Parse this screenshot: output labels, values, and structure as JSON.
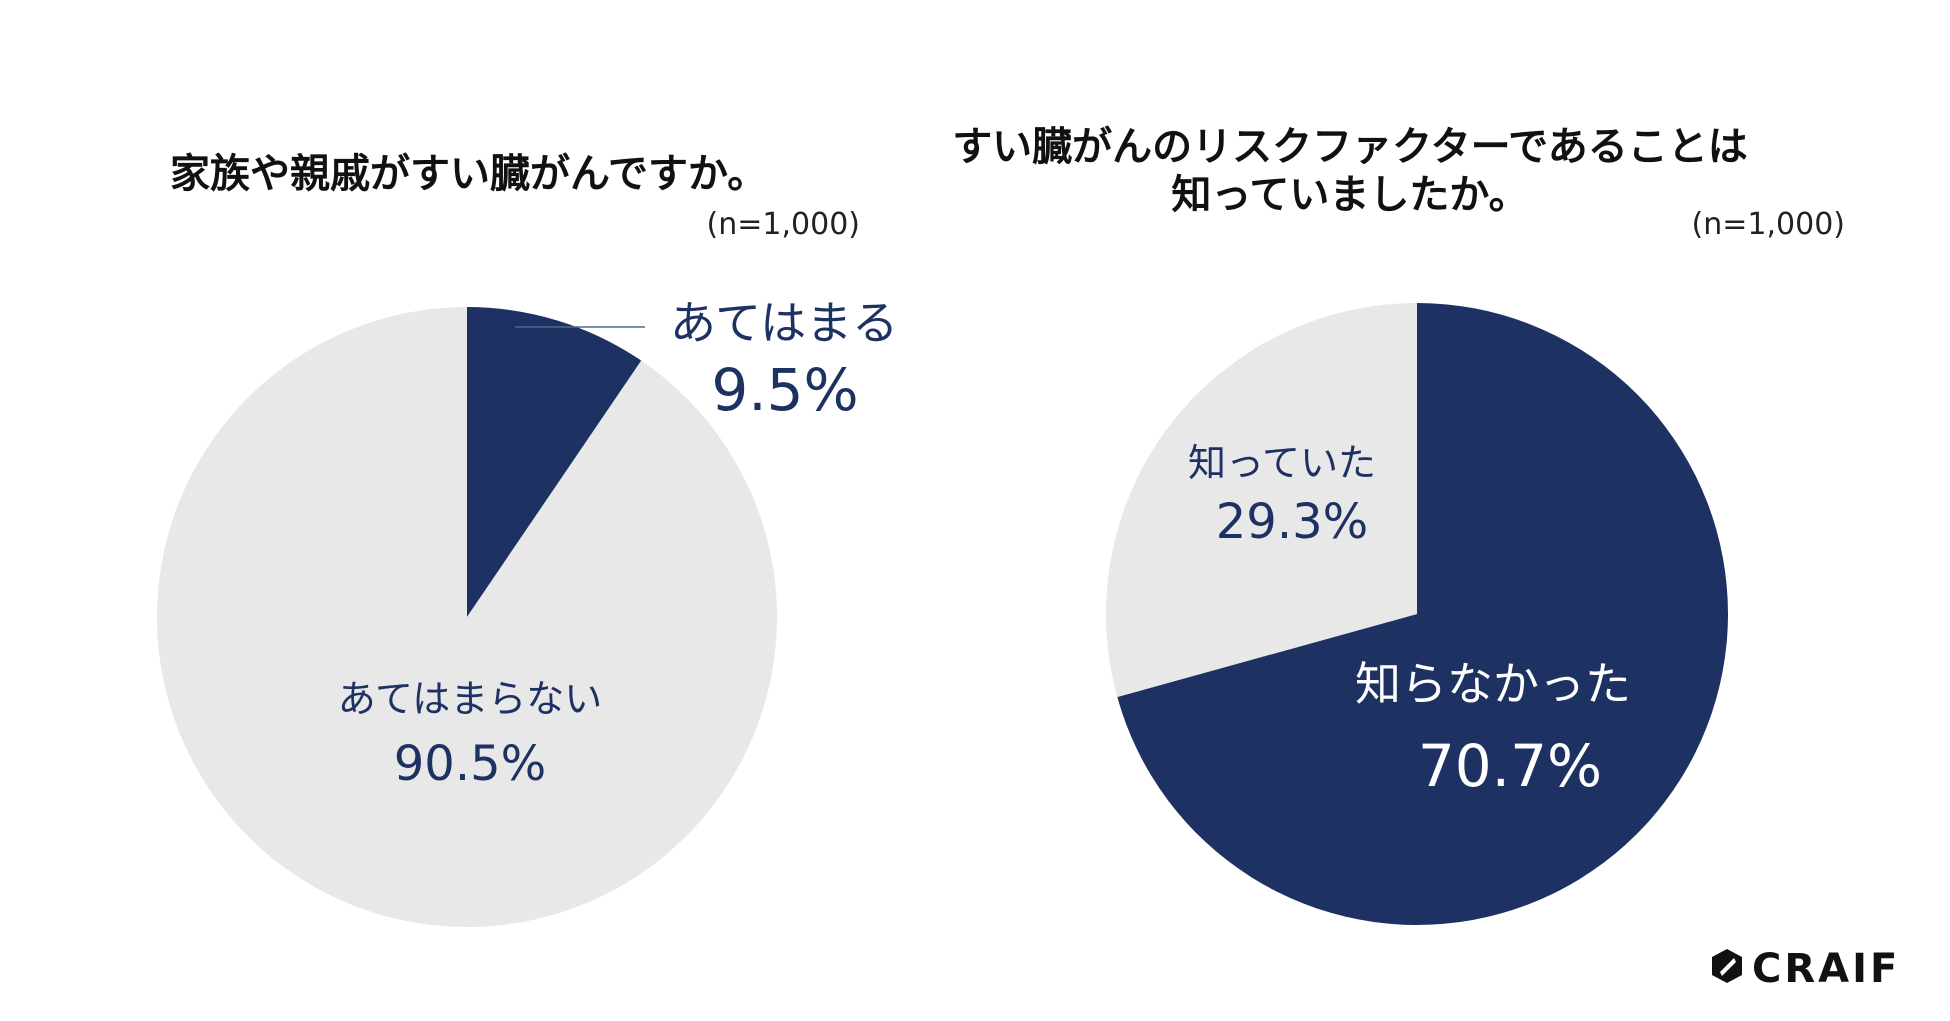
{
  "colors": {
    "accent": "#1e3163",
    "muted": "#e8e8e8",
    "text": "#111111"
  },
  "brand": {
    "logo_text": "CRAIF"
  },
  "chart_data": [
    {
      "type": "pie",
      "title": "家族や親戚がすい臓がんですか。",
      "sample_size": "(n=1,000)",
      "slices": [
        {
          "label": "あてはまる",
          "value": 9.5,
          "value_text": "9.5%",
          "color": "#1e3163"
        },
        {
          "label": "あてはまらない",
          "value": 90.5,
          "value_text": "90.5%",
          "color": "#e8e8e8"
        }
      ]
    },
    {
      "type": "pie",
      "title_lines": [
        "すい臓がんのリスクファクターであることは",
        "知っていましたか。"
      ],
      "sample_size": "(n=1,000)",
      "slices": [
        {
          "label": "知らなかった",
          "value": 70.7,
          "value_text": "70.7%",
          "color": "#1e3163"
        },
        {
          "label": "知っていた",
          "value": 29.3,
          "value_text": "29.3%",
          "color": "#e8e8e8"
        }
      ]
    }
  ]
}
